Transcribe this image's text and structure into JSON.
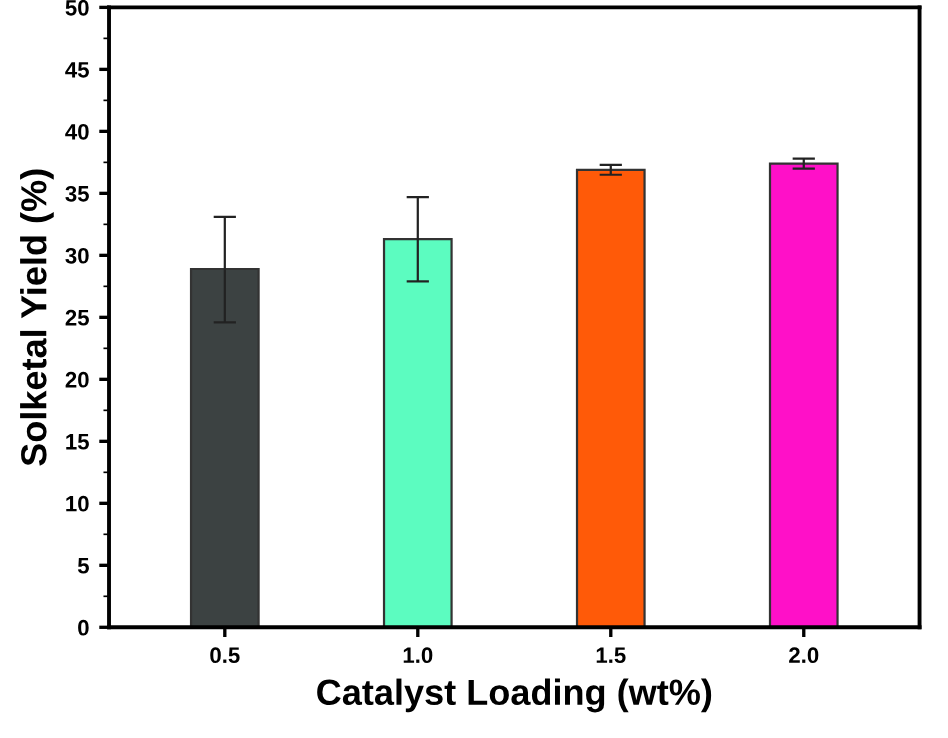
{
  "chart_data": {
    "type": "bar",
    "xlabel": "Catalyst Loading (wt%)",
    "ylabel": "Solketal Yield (%)",
    "categories": [
      "0.5",
      "1.0",
      "1.5",
      "2.0"
    ],
    "values": [
      28.9,
      31.3,
      36.9,
      37.4
    ],
    "errors": [
      [
        24.6,
        33.1
      ],
      [
        27.9,
        34.7
      ],
      [
        36.5,
        37.3
      ],
      [
        37.0,
        37.8
      ]
    ],
    "colors": [
      "#3c4242",
      "#5cfcc0",
      "#ff5a08",
      "#ff10c8"
    ],
    "ylim": [
      0,
      50
    ],
    "yticks": [
      0,
      5,
      10,
      15,
      20,
      25,
      30,
      35,
      40,
      45,
      50
    ],
    "grid": false
  }
}
